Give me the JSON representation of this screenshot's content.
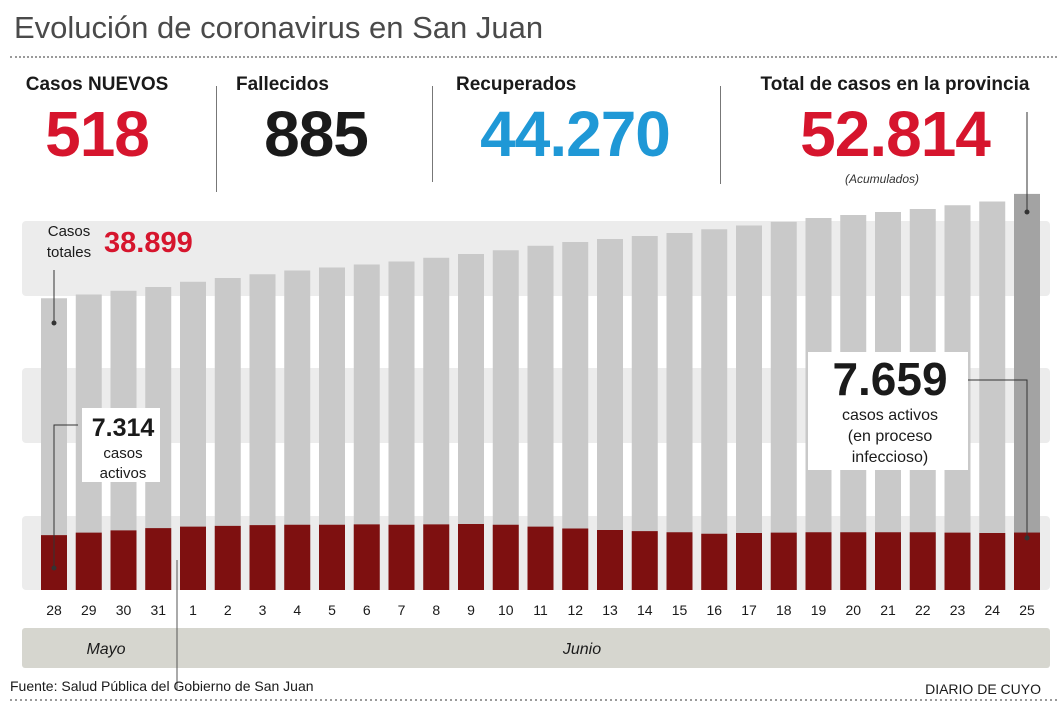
{
  "title": "Evolución de coronavirus en San Juan",
  "stats": {
    "nuevos": {
      "label": "Casos NUEVOS",
      "value": "518",
      "color": "#d6152d"
    },
    "fallecidos": {
      "label": "Fallecidos",
      "value": "885",
      "color": "#1a1a1a"
    },
    "recuperados": {
      "label": "Recuperados",
      "value": "44.270",
      "color": "#1f98d6"
    },
    "total": {
      "label": "Total de casos en la provincia",
      "value": "52.814",
      "note": "(Acumulados)",
      "color": "#d6152d"
    }
  },
  "annotations": {
    "casos_totales_label_1": "Casos",
    "casos_totales_label_2": "totales",
    "casos_totales_value": "38.899",
    "start_active_value": "7.314",
    "start_active_label_1": "casos",
    "start_active_label_2": "activos",
    "end_active_value": "7.659",
    "end_active_label_1": "casos activos",
    "end_active_label_2": "(en proceso",
    "end_active_label_3": "infeccioso)"
  },
  "months": {
    "may": "Mayo",
    "june": "Junio"
  },
  "footer": {
    "source": "Fuente: Salud Pública del Gobierno de San Juan",
    "brand": "DIARIO DE CUYO"
  },
  "colors": {
    "total_bar": "#c9c9c9",
    "last_total_bar": "#a3a3a3",
    "active_bar": "#7e1010",
    "band": "#ececec",
    "month_bar": "#d6d6cf"
  },
  "chart_data": {
    "type": "bar",
    "categories": [
      "28",
      "29",
      "30",
      "31",
      "1",
      "2",
      "3",
      "4",
      "5",
      "6",
      "7",
      "8",
      "9",
      "10",
      "11",
      "12",
      "13",
      "14",
      "15",
      "16",
      "17",
      "18",
      "19",
      "20",
      "21",
      "22",
      "23",
      "24",
      "25"
    ],
    "series": [
      {
        "name": "Casos totales",
        "values": [
          38899,
          39400,
          39900,
          40400,
          41100,
          41600,
          42100,
          42600,
          43000,
          43400,
          43800,
          44300,
          44800,
          45300,
          45900,
          46400,
          46800,
          47200,
          47600,
          48100,
          48600,
          49100,
          49600,
          50000,
          50400,
          50800,
          51300,
          51800,
          52814
        ]
      },
      {
        "name": "casos activos",
        "values": [
          7314,
          7650,
          7950,
          8250,
          8450,
          8550,
          8650,
          8700,
          8700,
          8750,
          8700,
          8750,
          8800,
          8700,
          8450,
          8200,
          8000,
          7850,
          7700,
          7500,
          7600,
          7650,
          7700,
          7700,
          7700,
          7700,
          7650,
          7600,
          7659
        ]
      }
    ],
    "ylim": [
      0,
      56000
    ]
  }
}
